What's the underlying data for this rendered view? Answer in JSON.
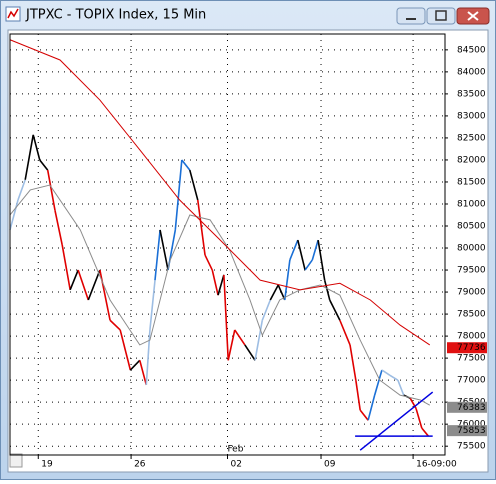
{
  "window": {
    "title": "JTPXC - TOPIX Index, 15 Min"
  },
  "chart_data": {
    "type": "line",
    "xlim": [
      0,
      60
    ],
    "ylim": [
      75300,
      84860
    ],
    "xticks": [
      {
        "value": 3.9,
        "label": "19"
      },
      {
        "value": 16.7,
        "label": "26"
      },
      {
        "value": 30,
        "label": "02"
      },
      {
        "value": 42.9,
        "label": "09"
      },
      {
        "value": 55.6,
        "label": "16-09:00"
      }
    ],
    "month_labels": [
      {
        "value": 30,
        "label": "Feb"
      }
    ],
    "yticks": [
      84500,
      84000,
      83500,
      83000,
      82500,
      82000,
      81500,
      81000,
      80500,
      80000,
      79500,
      79000,
      78500,
      78000,
      77500,
      77000,
      76500,
      76000,
      75500
    ],
    "grid": true,
    "series": [
      {
        "color": "#000000",
        "x": [
          0,
          1.1,
          2.1,
          3.2,
          4.1,
          5.2,
          6.2,
          7.2,
          8.3,
          9.4,
          10.8,
          12.4,
          13.8,
          15.2,
          16.6,
          17.9,
          18.8,
          19.3,
          20,
          20.7,
          21.8,
          22.8,
          23.7,
          24.8,
          25.9,
          26.9,
          27.9,
          28.7,
          29.5,
          30.1,
          31,
          32.4,
          33.8,
          34.8,
          35.9,
          37,
          37.9,
          38.6,
          39.7,
          40.7,
          41.7,
          42.5,
          43.4,
          44.1,
          45.5,
          46.9,
          47.7,
          48.3,
          49.4,
          50.3,
          51.3,
          52.4,
          53.5,
          54.3,
          55.2,
          56,
          56.8,
          57.7
        ],
        "values": [
          80410,
          81090,
          81550,
          82570,
          82000,
          81770,
          80860,
          80070,
          79050,
          79500,
          78820,
          79500,
          78360,
          78140,
          77230,
          77450,
          76890,
          78140,
          79270,
          80410,
          79500,
          80410,
          82000,
          81770,
          81090,
          79840,
          79500,
          78930,
          79390,
          77450,
          78140,
          77800,
          77450,
          78360,
          78820,
          79160,
          78820,
          79730,
          80180,
          79500,
          79730,
          80180,
          79270,
          78820,
          78360,
          77800,
          77000,
          76320,
          76090,
          76660,
          77230,
          77110,
          77000,
          76660,
          76590,
          76360,
          75910,
          75730
        ],
        "colors": [
          "#9dbde3",
          "#9dbde3",
          "#9dbde3",
          "#000000",
          "#000000",
          "#000000",
          "#e00000",
          "#e00000",
          "#e00000",
          "#000000",
          "#e00000",
          "#000000",
          "#e00000",
          "#e00000",
          "#e00000",
          "#000000",
          "#e00000",
          "#9dbde3",
          "#9dbde3",
          "#1a6fd6",
          "#000000",
          "#1a6fd6",
          "#1a6fd6",
          "#1a6fd6",
          "#000000",
          "#e00000",
          "#e00000",
          "#e00000",
          "#000000",
          "#e00000",
          "#e00000",
          "#e00000",
          "#000000",
          "#9dbde3",
          "#9dbde3",
          "#000000",
          "#000000",
          "#1a6fd6",
          "#1a6fd6",
          "#000000",
          "#1a6fd6",
          "#1a6fd6",
          "#000000",
          "#000000",
          "#000000",
          "#e00000",
          "#e00000",
          "#e00000",
          "#e00000",
          "#1a6fd6",
          "#1a6fd6",
          "#9dbde3",
          "#9dbde3",
          "#9dbde3",
          "#000000",
          "#e00000",
          "#e00000",
          "#e00000"
        ]
      },
      {
        "color": "#8c8c8c",
        "x": [
          0,
          2.8,
          5.5,
          9.7,
          13.8,
          17.9,
          19.3,
          22.1,
          24.8,
          27.6,
          30.3,
          33.1,
          34.8,
          37.2,
          40,
          42.8,
          45.5,
          48.3,
          51,
          53.8,
          56.6,
          57.9
        ],
        "values": [
          80750,
          81320,
          81430,
          80410,
          78820,
          77800,
          77910,
          79730,
          80750,
          80640,
          79950,
          78820,
          78020,
          78820,
          79050,
          79160,
          78930,
          77910,
          77000,
          76660,
          76550,
          76430
        ]
      },
      {
        "color": "#d40000",
        "x": [
          0,
          6.9,
          12.4,
          17.9,
          23.4,
          29,
          34.5,
          40,
          45.5,
          49.7,
          53.8,
          57.9
        ],
        "values": [
          84730,
          84270,
          83360,
          82230,
          81090,
          80180,
          79270,
          79050,
          79200,
          78820,
          78250,
          77800
        ]
      }
    ],
    "trendlines": [
      {
        "color": "#0000e0",
        "x": [
          48.3,
          58.3
        ],
        "values": [
          75410,
          76730
        ]
      },
      {
        "color": "#0000e0",
        "x": [
          47.6,
          58.3
        ],
        "values": [
          75730,
          75730
        ]
      }
    ],
    "price_labels": [
      {
        "value": 77736,
        "color": "#e01010"
      },
      {
        "value": 76383,
        "color": "#8c8c8c"
      },
      {
        "value": 75853,
        "color": "#8c8c8c"
      }
    ]
  }
}
